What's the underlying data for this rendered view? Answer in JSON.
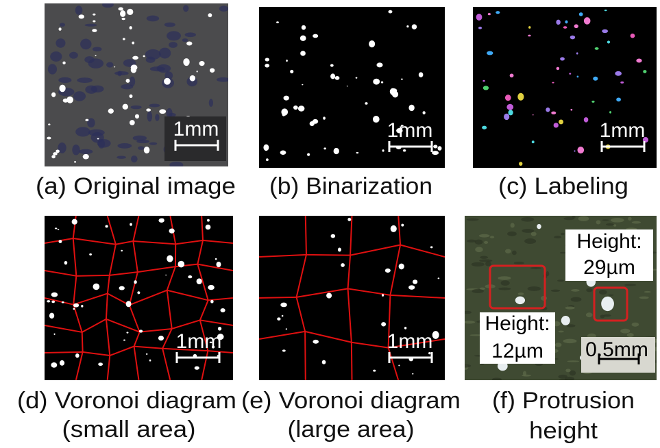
{
  "panels": [
    {
      "caption": [
        "(a) Original image"
      ],
      "scale_bar": "1mm"
    },
    {
      "caption": [
        "(b) Binarization"
      ],
      "scale_bar": "1mm"
    },
    {
      "caption": [
        "(c) Labeling"
      ],
      "scale_bar": "1mm"
    },
    {
      "caption": [
        "(d) Voronoi diagram",
        "(small area)"
      ],
      "scale_bar": "1mm"
    },
    {
      "caption": [
        "(e) Voronoi diagram",
        "(large area)"
      ],
      "scale_bar": "1mm"
    },
    {
      "caption": [
        "(f) Protrusion",
        "height"
      ],
      "scale_bar": "0.5mm",
      "annotations": [
        [
          "Height:",
          "29µm"
        ],
        [
          "Height:",
          "12µm"
        ]
      ]
    }
  ]
}
